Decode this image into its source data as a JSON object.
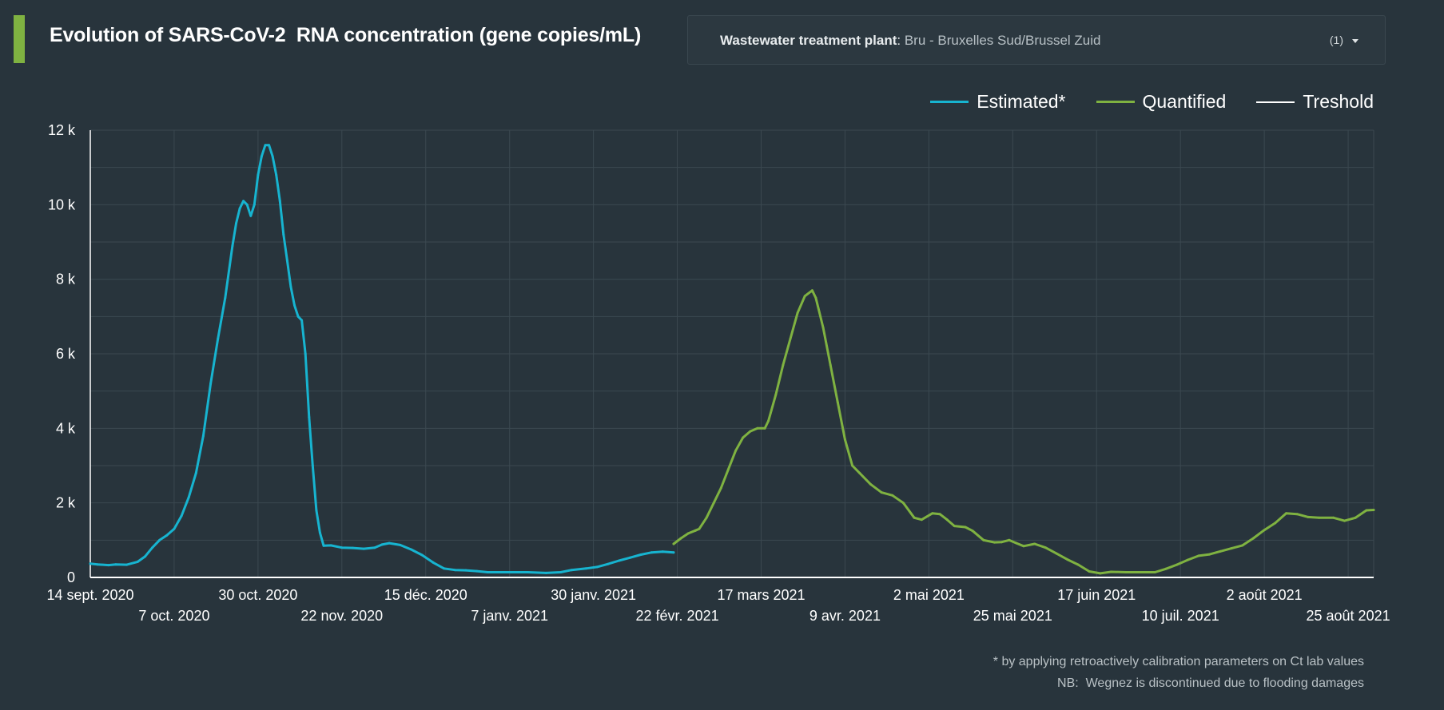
{
  "header": {
    "title": "Evolution of SARS-CoV-2  RNA concentration (gene copies/mL)",
    "accent_color": "#7fb241"
  },
  "filter": {
    "label": "Wastewater treatment plant",
    "separator": ": ",
    "value": "Bru - Bruxelles Sud/Brussel Zuid",
    "count": "(1)",
    "icon": "chevron-down-icon"
  },
  "footnotes": {
    "line1": "* by applying retroactively calibration parameters on Ct lab values",
    "line2": "NB:  Wegnez is discontinued due to flooding damages"
  },
  "chart_data": {
    "type": "line",
    "title": "Evolution of SARS-CoV-2  RNA concentration (gene copies/mL)",
    "xlabel": "",
    "ylabel": "",
    "x_range": [
      "2020-09-14",
      "2021-09-01"
    ],
    "ylim": [
      0,
      12000
    ],
    "grid": true,
    "legend_position": "top-right",
    "y_ticks": [
      {
        "value": 0,
        "label": "0"
      },
      {
        "value": 2000,
        "label": "2 k"
      },
      {
        "value": 4000,
        "label": "4 k"
      },
      {
        "value": 6000,
        "label": "6 k"
      },
      {
        "value": 8000,
        "label": "8 k"
      },
      {
        "value": 10000,
        "label": "10 k"
      },
      {
        "value": 12000,
        "label": "12 k"
      }
    ],
    "x_ticks": [
      {
        "date": "2020-09-14",
        "label": "14 sept. 2020",
        "row": 1
      },
      {
        "date": "2020-10-07",
        "label": "7 oct. 2020",
        "row": 2
      },
      {
        "date": "2020-10-30",
        "label": "30 oct. 2020",
        "row": 1
      },
      {
        "date": "2020-11-22",
        "label": "22 nov. 2020",
        "row": 2
      },
      {
        "date": "2020-12-15",
        "label": "15 déc. 2020",
        "row": 1
      },
      {
        "date": "2021-01-07",
        "label": "7 janv. 2021",
        "row": 2
      },
      {
        "date": "2021-01-30",
        "label": "30 janv. 2021",
        "row": 1
      },
      {
        "date": "2021-02-22",
        "label": "22 févr. 2021",
        "row": 2
      },
      {
        "date": "2021-03-17",
        "label": "17 mars 2021",
        "row": 1
      },
      {
        "date": "2021-04-09",
        "label": "9 avr. 2021",
        "row": 2
      },
      {
        "date": "2021-05-02",
        "label": "2 mai 2021",
        "row": 1
      },
      {
        "date": "2021-05-25",
        "label": "25 mai 2021",
        "row": 2
      },
      {
        "date": "2021-06-17",
        "label": "17 juin 2021",
        "row": 1
      },
      {
        "date": "2021-07-10",
        "label": "10 juil. 2021",
        "row": 2
      },
      {
        "date": "2021-08-02",
        "label": "2 août 2021",
        "row": 1
      },
      {
        "date": "2021-08-25",
        "label": "25 août 2021",
        "row": 2
      }
    ],
    "series": [
      {
        "name": "Estimated*",
        "color": "#17b4d0",
        "points": [
          [
            "2020-09-14",
            370
          ],
          [
            "2020-09-16",
            350
          ],
          [
            "2020-09-19",
            330
          ],
          [
            "2020-09-21",
            350
          ],
          [
            "2020-09-24",
            340
          ],
          [
            "2020-09-27",
            420
          ],
          [
            "2020-09-29",
            560
          ],
          [
            "2020-10-01",
            800
          ],
          [
            "2020-10-03",
            1000
          ],
          [
            "2020-10-05",
            1130
          ],
          [
            "2020-10-07",
            1300
          ],
          [
            "2020-10-09",
            1650
          ],
          [
            "2020-10-11",
            2150
          ],
          [
            "2020-10-13",
            2800
          ],
          [
            "2020-10-15",
            3800
          ],
          [
            "2020-10-17",
            5200
          ],
          [
            "2020-10-19",
            6400
          ],
          [
            "2020-10-21",
            7500
          ],
          [
            "2020-10-23",
            8900
          ],
          [
            "2020-10-24",
            9500
          ],
          [
            "2020-10-25",
            9900
          ],
          [
            "2020-10-26",
            10100
          ],
          [
            "2020-10-27",
            10000
          ],
          [
            "2020-10-28",
            9700
          ],
          [
            "2020-10-29",
            10000
          ],
          [
            "2020-10-30",
            10800
          ],
          [
            "2020-10-31",
            11300
          ],
          [
            "2020-11-01",
            11600
          ],
          [
            "2020-11-02",
            11600
          ],
          [
            "2020-11-03",
            11300
          ],
          [
            "2020-11-04",
            10800
          ],
          [
            "2020-11-05",
            10100
          ],
          [
            "2020-11-06",
            9200
          ],
          [
            "2020-11-07",
            8500
          ],
          [
            "2020-11-08",
            7800
          ],
          [
            "2020-11-09",
            7300
          ],
          [
            "2020-11-10",
            7000
          ],
          [
            "2020-11-11",
            6900
          ],
          [
            "2020-11-12",
            6000
          ],
          [
            "2020-11-13",
            4300
          ],
          [
            "2020-11-14",
            3000
          ],
          [
            "2020-11-15",
            1800
          ],
          [
            "2020-11-16",
            1200
          ],
          [
            "2020-11-17",
            850
          ],
          [
            "2020-11-19",
            860
          ],
          [
            "2020-11-22",
            800
          ],
          [
            "2020-11-25",
            790
          ],
          [
            "2020-11-28",
            770
          ],
          [
            "2020-12-01",
            800
          ],
          [
            "2020-12-03",
            880
          ],
          [
            "2020-12-05",
            920
          ],
          [
            "2020-12-08",
            870
          ],
          [
            "2020-12-11",
            750
          ],
          [
            "2020-12-14",
            600
          ],
          [
            "2020-12-17",
            400
          ],
          [
            "2020-12-20",
            240
          ],
          [
            "2020-12-23",
            200
          ],
          [
            "2020-12-26",
            190
          ],
          [
            "2020-12-29",
            170
          ],
          [
            "2021-01-01",
            140
          ],
          [
            "2021-01-07",
            140
          ],
          [
            "2021-01-12",
            140
          ],
          [
            "2021-01-17",
            120
          ],
          [
            "2021-01-21",
            140
          ],
          [
            "2021-01-24",
            200
          ],
          [
            "2021-01-28",
            240
          ],
          [
            "2021-01-31",
            280
          ],
          [
            "2021-02-03",
            360
          ],
          [
            "2021-02-06",
            450
          ],
          [
            "2021-02-09",
            530
          ],
          [
            "2021-02-12",
            610
          ],
          [
            "2021-02-15",
            670
          ],
          [
            "2021-02-18",
            690
          ],
          [
            "2021-02-21",
            670
          ]
        ]
      },
      {
        "name": "Quantified",
        "color": "#7fb241",
        "points": [
          [
            "2021-02-21",
            900
          ],
          [
            "2021-02-23",
            1050
          ],
          [
            "2021-02-25",
            1180
          ],
          [
            "2021-02-27",
            1260
          ],
          [
            "2021-02-28",
            1300
          ],
          [
            "2021-03-02",
            1600
          ],
          [
            "2021-03-04",
            2000
          ],
          [
            "2021-03-06",
            2400
          ],
          [
            "2021-03-08",
            2900
          ],
          [
            "2021-03-10",
            3400
          ],
          [
            "2021-03-12",
            3750
          ],
          [
            "2021-03-14",
            3920
          ],
          [
            "2021-03-16",
            4000
          ],
          [
            "2021-03-18",
            4000
          ],
          [
            "2021-03-19",
            4200
          ],
          [
            "2021-03-21",
            4900
          ],
          [
            "2021-03-23",
            5700
          ],
          [
            "2021-03-25",
            6400
          ],
          [
            "2021-03-27",
            7100
          ],
          [
            "2021-03-29",
            7550
          ],
          [
            "2021-03-31",
            7700
          ],
          [
            "2021-04-01",
            7500
          ],
          [
            "2021-04-03",
            6700
          ],
          [
            "2021-04-05",
            5700
          ],
          [
            "2021-04-07",
            4700
          ],
          [
            "2021-04-09",
            3700
          ],
          [
            "2021-04-11",
            3000
          ],
          [
            "2021-04-13",
            2800
          ],
          [
            "2021-04-16",
            2500
          ],
          [
            "2021-04-19",
            2280
          ],
          [
            "2021-04-22",
            2200
          ],
          [
            "2021-04-25",
            2000
          ],
          [
            "2021-04-28",
            1600
          ],
          [
            "2021-04-30",
            1550
          ],
          [
            "2021-05-03",
            1720
          ],
          [
            "2021-05-05",
            1700
          ],
          [
            "2021-05-07",
            1550
          ],
          [
            "2021-05-09",
            1380
          ],
          [
            "2021-05-12",
            1350
          ],
          [
            "2021-05-14",
            1250
          ],
          [
            "2021-05-17",
            1000
          ],
          [
            "2021-05-20",
            940
          ],
          [
            "2021-05-22",
            950
          ],
          [
            "2021-05-24",
            1000
          ],
          [
            "2021-05-26",
            920
          ],
          [
            "2021-05-28",
            840
          ],
          [
            "2021-05-31",
            900
          ],
          [
            "2021-06-03",
            800
          ],
          [
            "2021-06-06",
            640
          ],
          [
            "2021-06-09",
            480
          ],
          [
            "2021-06-12",
            340
          ],
          [
            "2021-06-15",
            160
          ],
          [
            "2021-06-18",
            110
          ],
          [
            "2021-06-21",
            150
          ],
          [
            "2021-06-25",
            140
          ],
          [
            "2021-06-29",
            140
          ],
          [
            "2021-07-03",
            140
          ],
          [
            "2021-07-06",
            230
          ],
          [
            "2021-07-09",
            340
          ],
          [
            "2021-07-12",
            470
          ],
          [
            "2021-07-15",
            580
          ],
          [
            "2021-07-18",
            620
          ],
          [
            "2021-07-21",
            700
          ],
          [
            "2021-07-24",
            780
          ],
          [
            "2021-07-27",
            860
          ],
          [
            "2021-07-30",
            1050
          ],
          [
            "2021-08-02",
            1270
          ],
          [
            "2021-08-05",
            1460
          ],
          [
            "2021-08-08",
            1720
          ],
          [
            "2021-08-11",
            1700
          ],
          [
            "2021-08-14",
            1620
          ],
          [
            "2021-08-17",
            1600
          ],
          [
            "2021-08-21",
            1600
          ],
          [
            "2021-08-24",
            1520
          ],
          [
            "2021-08-27",
            1600
          ],
          [
            "2021-08-30",
            1800
          ],
          [
            "2021-09-01",
            1810
          ]
        ]
      },
      {
        "name": "Treshold",
        "color": "#ffffff",
        "points": []
      }
    ]
  }
}
